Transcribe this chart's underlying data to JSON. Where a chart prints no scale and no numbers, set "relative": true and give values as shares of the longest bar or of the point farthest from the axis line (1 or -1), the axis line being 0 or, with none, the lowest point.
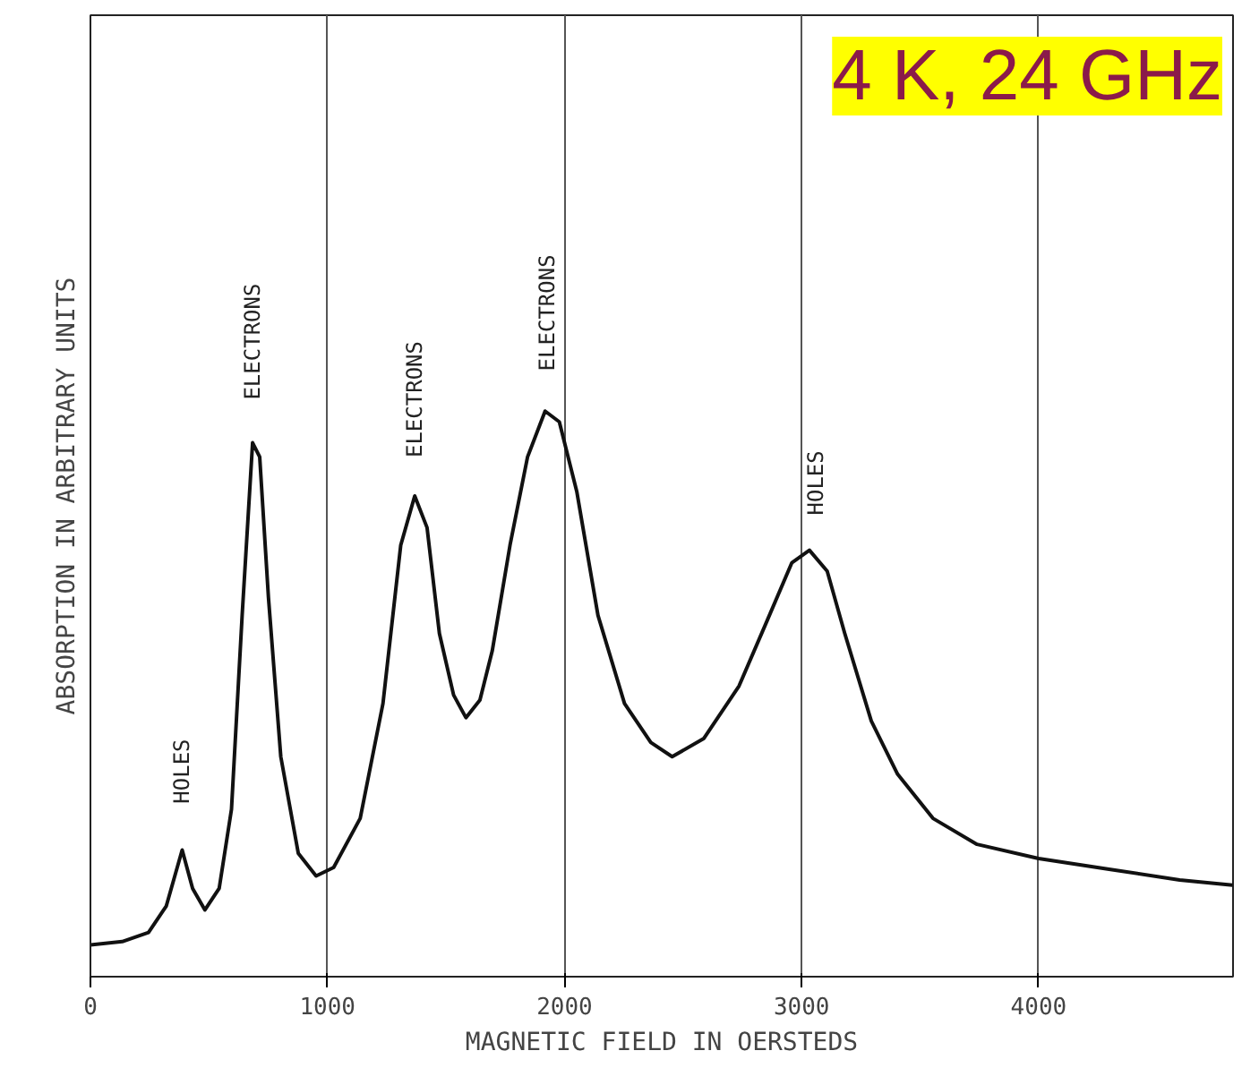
{
  "chart_data": {
    "type": "line",
    "title": "4 K, 24 GHz",
    "xlabel": "MAGNETIC FIELD IN OERSTEDS",
    "ylabel": "ABSORPTION IN ARBITRARY UNITS",
    "relative": true,
    "xlim": [
      0,
      4820
    ],
    "xticks": [
      0,
      1000,
      2000,
      3000,
      4000
    ],
    "grid": "x",
    "series": [
      {
        "color": "#111111",
        "x": [
          0,
          134,
          245,
          320,
          387,
          431,
          483,
          543,
          595,
          640,
          684,
          714,
          751,
          803,
          877,
          952,
          1026,
          1138,
          1234,
          1309,
          1368,
          1420,
          1472,
          1532,
          1584,
          1643,
          1695,
          1770,
          1844,
          1918,
          1978,
          2052,
          2141,
          2253,
          2364,
          2454,
          2587,
          2736,
          2848,
          2959,
          3033,
          3108,
          3182,
          3294,
          3405,
          3554,
          3740,
          4000,
          4297,
          4595,
          4818
        ],
        "values": [
          0.056,
          0.062,
          0.078,
          0.125,
          0.224,
          0.156,
          0.118,
          0.156,
          0.296,
          0.639,
          0.944,
          0.919,
          0.67,
          0.389,
          0.218,
          0.178,
          0.193,
          0.28,
          0.483,
          0.763,
          0.85,
          0.794,
          0.607,
          0.498,
          0.458,
          0.489,
          0.576,
          0.763,
          0.919,
          1.0,
          0.981,
          0.857,
          0.639,
          0.483,
          0.414,
          0.389,
          0.421,
          0.514,
          0.623,
          0.732,
          0.754,
          0.717,
          0.607,
          0.452,
          0.358,
          0.28,
          0.234,
          0.209,
          0.19,
          0.171,
          0.162
        ]
      }
    ],
    "annotations": [
      "HOLES",
      "ELECTRONS",
      "ELECTRONS",
      "ELECTRONS",
      "HOLES"
    ]
  }
}
